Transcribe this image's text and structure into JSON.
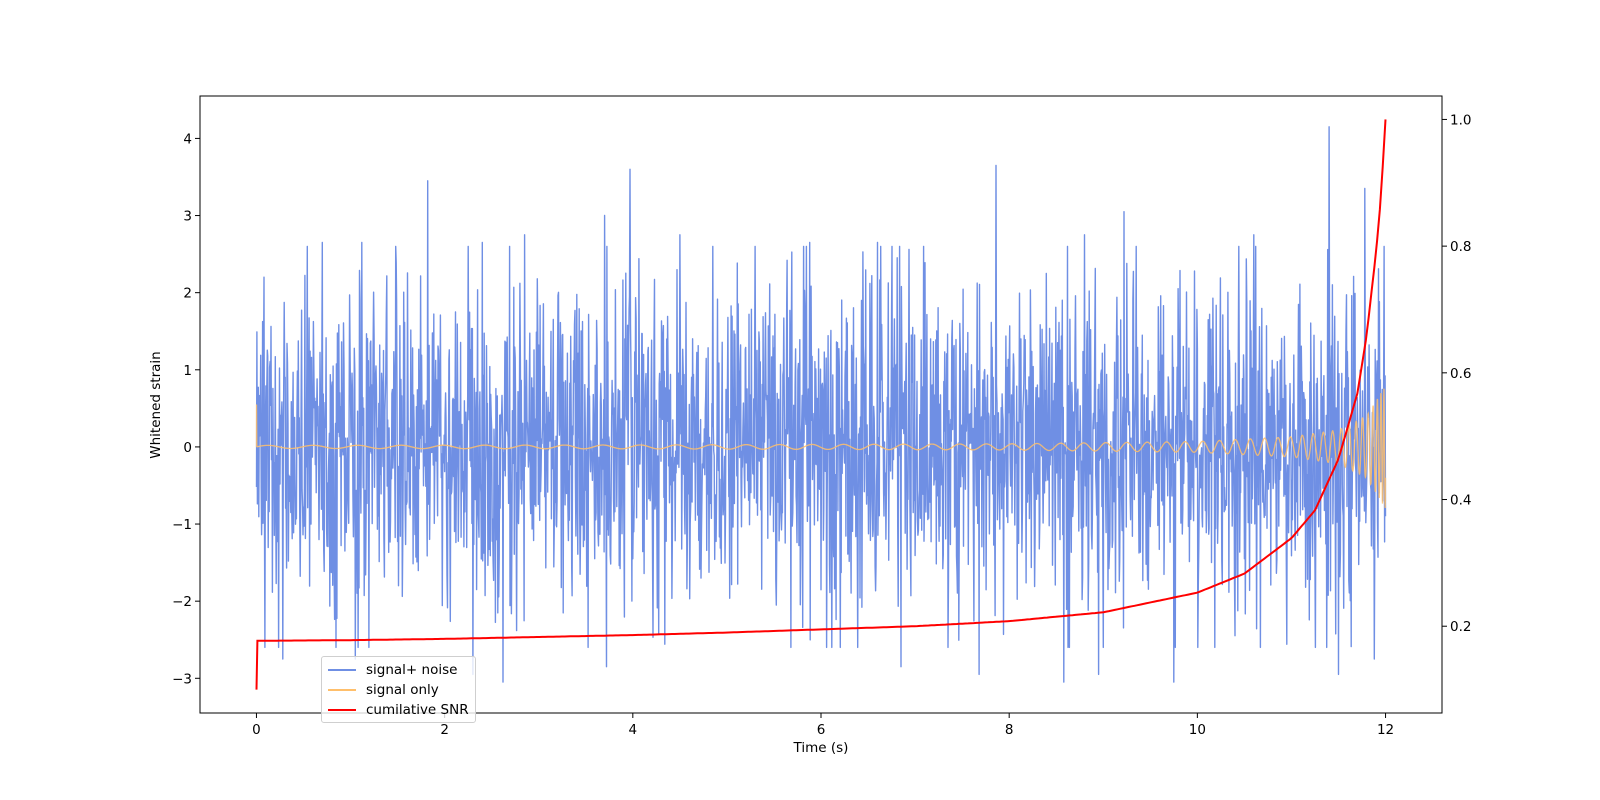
{
  "chart_data": {
    "type": "line",
    "title": "",
    "xlabel": "Time (s)",
    "ylabel": "Whitened strain",
    "y2label": "",
    "xlim": [
      -0.6,
      12.6
    ],
    "ylim": [
      -3.45,
      4.55
    ],
    "y2lim": [
      0.063,
      1.037
    ],
    "xticks": [
      0,
      2,
      4,
      6,
      8,
      10,
      12
    ],
    "yticks": [
      -3,
      -2,
      -1,
      0,
      1,
      2,
      3,
      4
    ],
    "y2ticks": [
      0.2,
      0.4,
      0.6,
      0.8,
      1.0
    ],
    "xtick_labels": [
      "0",
      "2",
      "4",
      "6",
      "8",
      "10",
      "12"
    ],
    "ytick_labels": [
      "−3",
      "−2",
      "−1",
      "0",
      "1",
      "2",
      "3",
      "4"
    ],
    "y2tick_labels": [
      "0.2",
      "0.4",
      "0.6",
      "0.8",
      "1.0"
    ],
    "grid": false,
    "legend_position": "lower-left",
    "series": [
      {
        "name": "signal+ noise",
        "axis": "left",
        "color": "#6f8fe4",
        "description": "dense noise trace, roughly symmetric about 0",
        "envelope": {
          "x": [
            0,
            12
          ],
          "typical_min": -1.7,
          "typical_max": 1.7
        },
        "peaks_high": [
          [
            0.08,
            2.2
          ],
          [
            0.7,
            2.65
          ],
          [
            1.12,
            2.65
          ],
          [
            1.82,
            3.45
          ],
          [
            2.4,
            2.65
          ],
          [
            2.85,
            2.75
          ],
          [
            3.7,
            3.0
          ],
          [
            3.97,
            3.6
          ],
          [
            4.5,
            2.75
          ],
          [
            5.3,
            2.6
          ],
          [
            5.88,
            2.65
          ],
          [
            6.6,
            2.65
          ],
          [
            7.86,
            3.65
          ],
          [
            8.8,
            2.75
          ],
          [
            9.22,
            3.05
          ],
          [
            10.6,
            2.75
          ],
          [
            11.4,
            4.15
          ],
          [
            11.78,
            3.35
          ]
        ],
        "peaks_low": [
          [
            0.28,
            -2.75
          ],
          [
            1.05,
            -2.75
          ],
          [
            2.3,
            -2.95
          ],
          [
            2.62,
            -3.05
          ],
          [
            3.72,
            -2.85
          ],
          [
            6.85,
            -2.85
          ],
          [
            7.68,
            -2.95
          ],
          [
            8.58,
            -3.05
          ],
          [
            8.95,
            -2.95
          ],
          [
            9.75,
            -3.05
          ],
          [
            11.5,
            -2.95
          ],
          [
            11.88,
            -2.75
          ]
        ]
      },
      {
        "name": "signal only",
        "axis": "left",
        "color": "#ffbf6b",
        "description": "chirp growing toward merger",
        "amplitude": {
          "x": [
            0,
            4,
            8,
            10,
            11,
            11.5,
            11.8,
            12.0
          ],
          "a": [
            0.02,
            0.025,
            0.04,
            0.07,
            0.13,
            0.22,
            0.4,
            0.8
          ]
        },
        "initial_spike": {
          "x": 0,
          "y": 0.55
        }
      },
      {
        "name": "cumilative SNR",
        "axis": "right",
        "color": "#ff0000",
        "x": [
          0.0,
          0.01,
          1.0,
          2.0,
          3.0,
          4.0,
          5.0,
          6.0,
          7.0,
          8.0,
          9.0,
          10.0,
          10.5,
          11.0,
          11.25,
          11.5,
          11.7,
          11.8,
          11.9,
          11.95,
          12.0
        ],
        "y": [
          0.1,
          0.177,
          0.178,
          0.18,
          0.183,
          0.186,
          0.19,
          0.195,
          0.2,
          0.208,
          0.222,
          0.253,
          0.283,
          0.339,
          0.383,
          0.464,
          0.567,
          0.66,
          0.792,
          0.875,
          1.0
        ]
      }
    ]
  }
}
